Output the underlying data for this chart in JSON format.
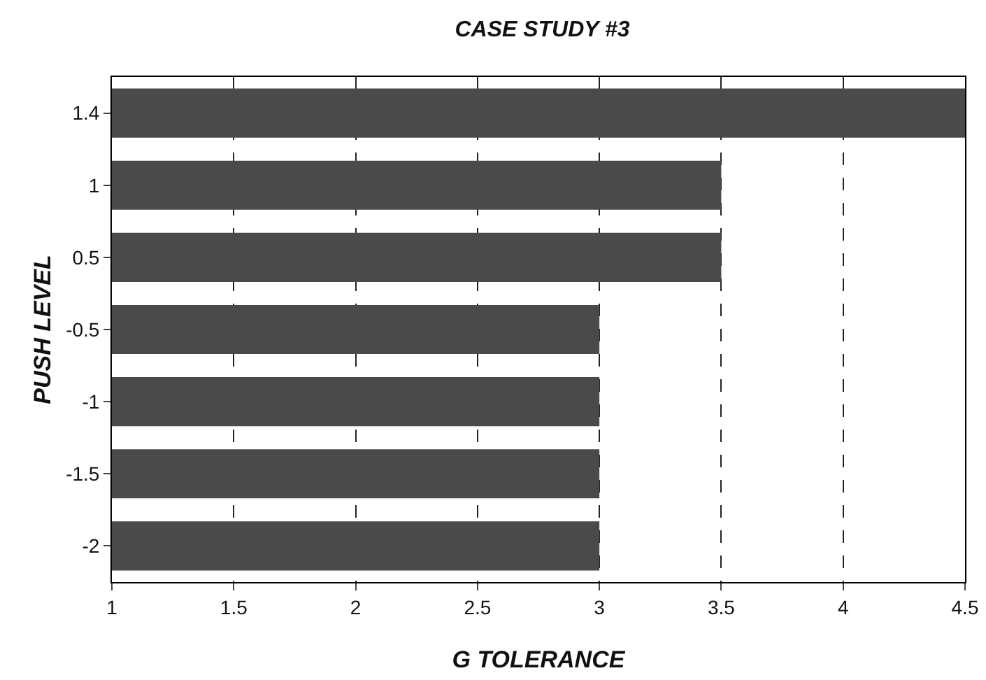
{
  "chart_data": {
    "type": "bar",
    "orientation": "horizontal",
    "title": "CASE STUDY #3",
    "xlabel": "G TOLERANCE",
    "ylabel": "PUSH LEVEL",
    "categories": [
      "1.4",
      "1",
      "0.5",
      "-0.5",
      "-1",
      "-1.5",
      "-2"
    ],
    "values": [
      4.5,
      3.5,
      3.5,
      3,
      3,
      3,
      3
    ],
    "color": "#4a4a4a",
    "xlim": [
      1,
      4.5
    ],
    "xticks": [
      1,
      1.5,
      2,
      2.5,
      3,
      3.5,
      4,
      4.5
    ],
    "grid": "x"
  }
}
